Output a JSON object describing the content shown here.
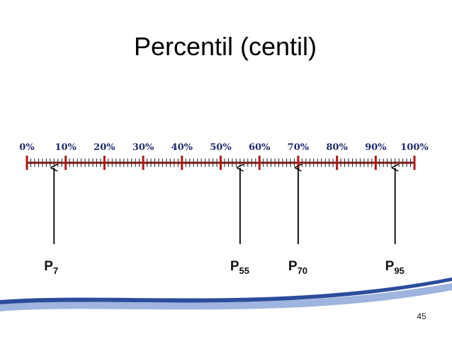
{
  "title": "Percentil (centil)",
  "scale": {
    "range": [
      0,
      100
    ],
    "ticks": [
      {
        "value": 0,
        "label": "0%"
      },
      {
        "value": 10,
        "label": "10%"
      },
      {
        "value": 20,
        "label": "20%"
      },
      {
        "value": 30,
        "label": "30%"
      },
      {
        "value": 40,
        "label": "40%"
      },
      {
        "value": 50,
        "label": "50%"
      },
      {
        "value": 60,
        "label": "60%"
      },
      {
        "value": 70,
        "label": "70%"
      },
      {
        "value": 80,
        "label": "80%"
      },
      {
        "value": 90,
        "label": "90%"
      },
      {
        "value": 100,
        "label": "100%"
      }
    ]
  },
  "markers": [
    {
      "letter": "P",
      "value": 7
    },
    {
      "letter": "P",
      "value": 55
    },
    {
      "letter": "P",
      "value": 70
    },
    {
      "letter": "P",
      "value": 95
    }
  ],
  "page_number": "45"
}
